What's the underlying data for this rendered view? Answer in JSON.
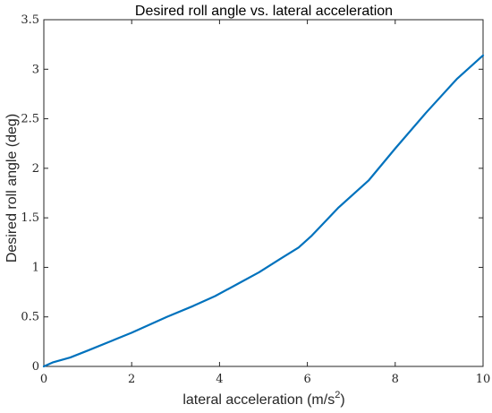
{
  "chart_data": {
    "type": "line",
    "title": "Desired roll angle vs. lateral acceleration",
    "xlabel": "lateral acceleration (m/s",
    "xlabel_superscript": "2",
    "xlabel_suffix": ")",
    "ylabel": "Desired roll angle (deg)",
    "xlim": [
      0,
      10
    ],
    "ylim": [
      0,
      3.5
    ],
    "xticks": [
      0,
      2,
      4,
      6,
      8,
      10
    ],
    "xtick_labels": [
      "0",
      "2",
      "4",
      "6",
      "8",
      "10"
    ],
    "yticks": [
      0,
      0.5,
      1,
      1.5,
      2,
      2.5,
      3,
      3.5
    ],
    "ytick_labels": [
      "0",
      "0.5",
      "1",
      "1.5",
      "2",
      "2.5",
      "3",
      "3.5"
    ],
    "grid": false,
    "box": true,
    "series": [
      {
        "color": "#0072bd",
        "x": [
          0,
          0.2,
          0.6,
          1.0,
          1.5,
          2.0,
          2.8,
          3.4,
          3.9,
          4.4,
          4.9,
          5.4,
          5.8,
          6.1,
          6.7,
          7.4,
          8.0,
          8.7,
          9.4,
          10.0
        ],
        "y": [
          0,
          0.04,
          0.09,
          0.16,
          0.25,
          0.34,
          0.5,
          0.61,
          0.71,
          0.83,
          0.95,
          1.09,
          1.2,
          1.32,
          1.6,
          1.88,
          2.2,
          2.56,
          2.9,
          3.14
        ]
      }
    ]
  }
}
